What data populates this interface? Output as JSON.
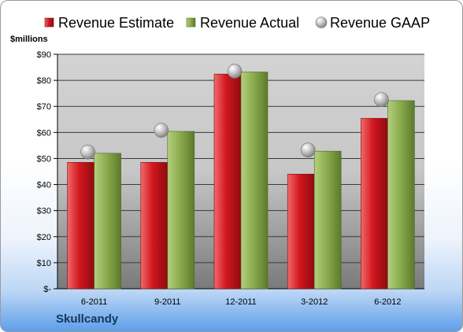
{
  "company": "Skullcandy",
  "chart_data": {
    "type": "bar",
    "ylabel": "$millions",
    "ylim": [
      0,
      90
    ],
    "yticks": [
      0,
      10,
      20,
      30,
      40,
      50,
      60,
      70,
      80,
      90
    ],
    "ytick_labels": [
      "$-",
      "$10",
      "$20",
      "$30",
      "$40",
      "$50",
      "$60",
      "$70",
      "$80",
      "$90"
    ],
    "categories": [
      "6-2011",
      "9-2011",
      "12-2011",
      "3-2012",
      "6-2012"
    ],
    "legend_position": "top",
    "grid": true,
    "series": [
      {
        "name": "Revenue Estimate",
        "type": "bar",
        "color": "#c0141c",
        "values": [
          48.5,
          48.5,
          82.4,
          44.0,
          65.4
        ]
      },
      {
        "name": "Revenue Actual",
        "type": "bar",
        "color": "#86a84a",
        "values": [
          52.0,
          60.4,
          83.2,
          52.8,
          72.2
        ]
      },
      {
        "name": "Revenue GAAP",
        "type": "scatter",
        "color": "#b9b9b9",
        "values": [
          52.5,
          60.8,
          83.5,
          53.2,
          72.6
        ]
      }
    ]
  }
}
